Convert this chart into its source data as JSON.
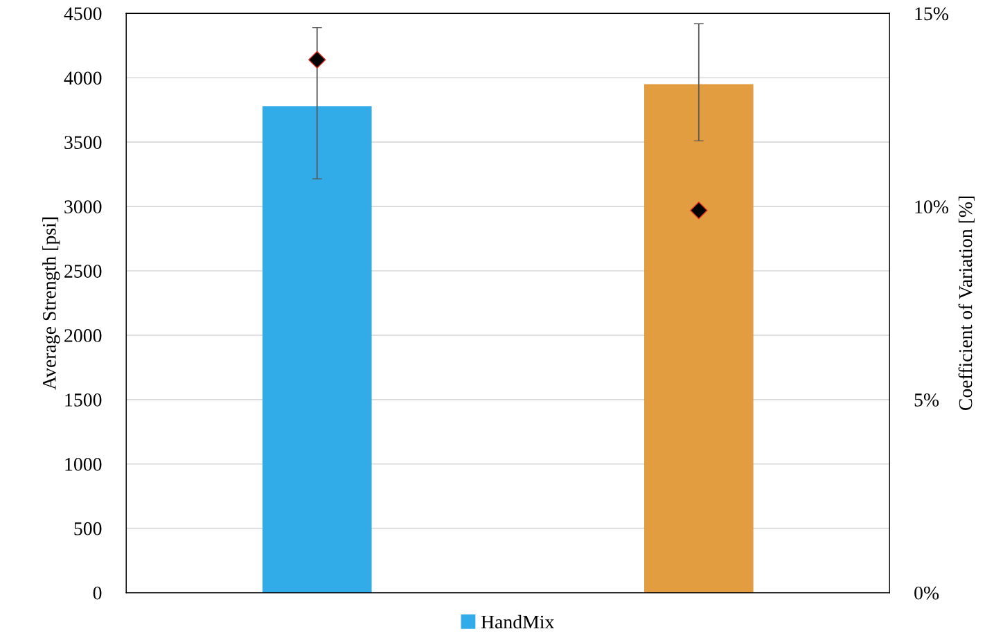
{
  "chart_data": {
    "type": "bar",
    "ylabel": "Average Strength [psi]",
    "y2label": "Coefficient of Variation [%]",
    "categories": [
      null,
      null
    ],
    "series": [
      {
        "name": "HandMix",
        "color": "#32ace9",
        "values": [
          3780,
          null
        ],
        "errors": [
          [
            3215,
            4390
          ],
          null
        ]
      },
      {
        "color": "#e19d40",
        "values": [
          null,
          3950
        ],
        "errors": [
          null,
          [
            3510,
            4420
          ]
        ]
      },
      {
        "type": "scatter",
        "axis": "y2",
        "marker": "diamond",
        "color": "#000000",
        "values": [
          13.8,
          9.9
        ]
      }
    ],
    "ylim": [
      0,
      4500
    ],
    "yticks": [
      0,
      500,
      1000,
      1500,
      2000,
      2500,
      3000,
      3500,
      4000,
      4500
    ],
    "y2lim": [
      0,
      15
    ],
    "y2ticks": [
      {
        "value": 0,
        "label": "0%"
      },
      {
        "value": 5,
        "label": "5%"
      },
      {
        "value": 10,
        "label": "10%"
      },
      {
        "value": 15,
        "label": "15%"
      }
    ],
    "grid": "y",
    "legend": "bottom"
  }
}
